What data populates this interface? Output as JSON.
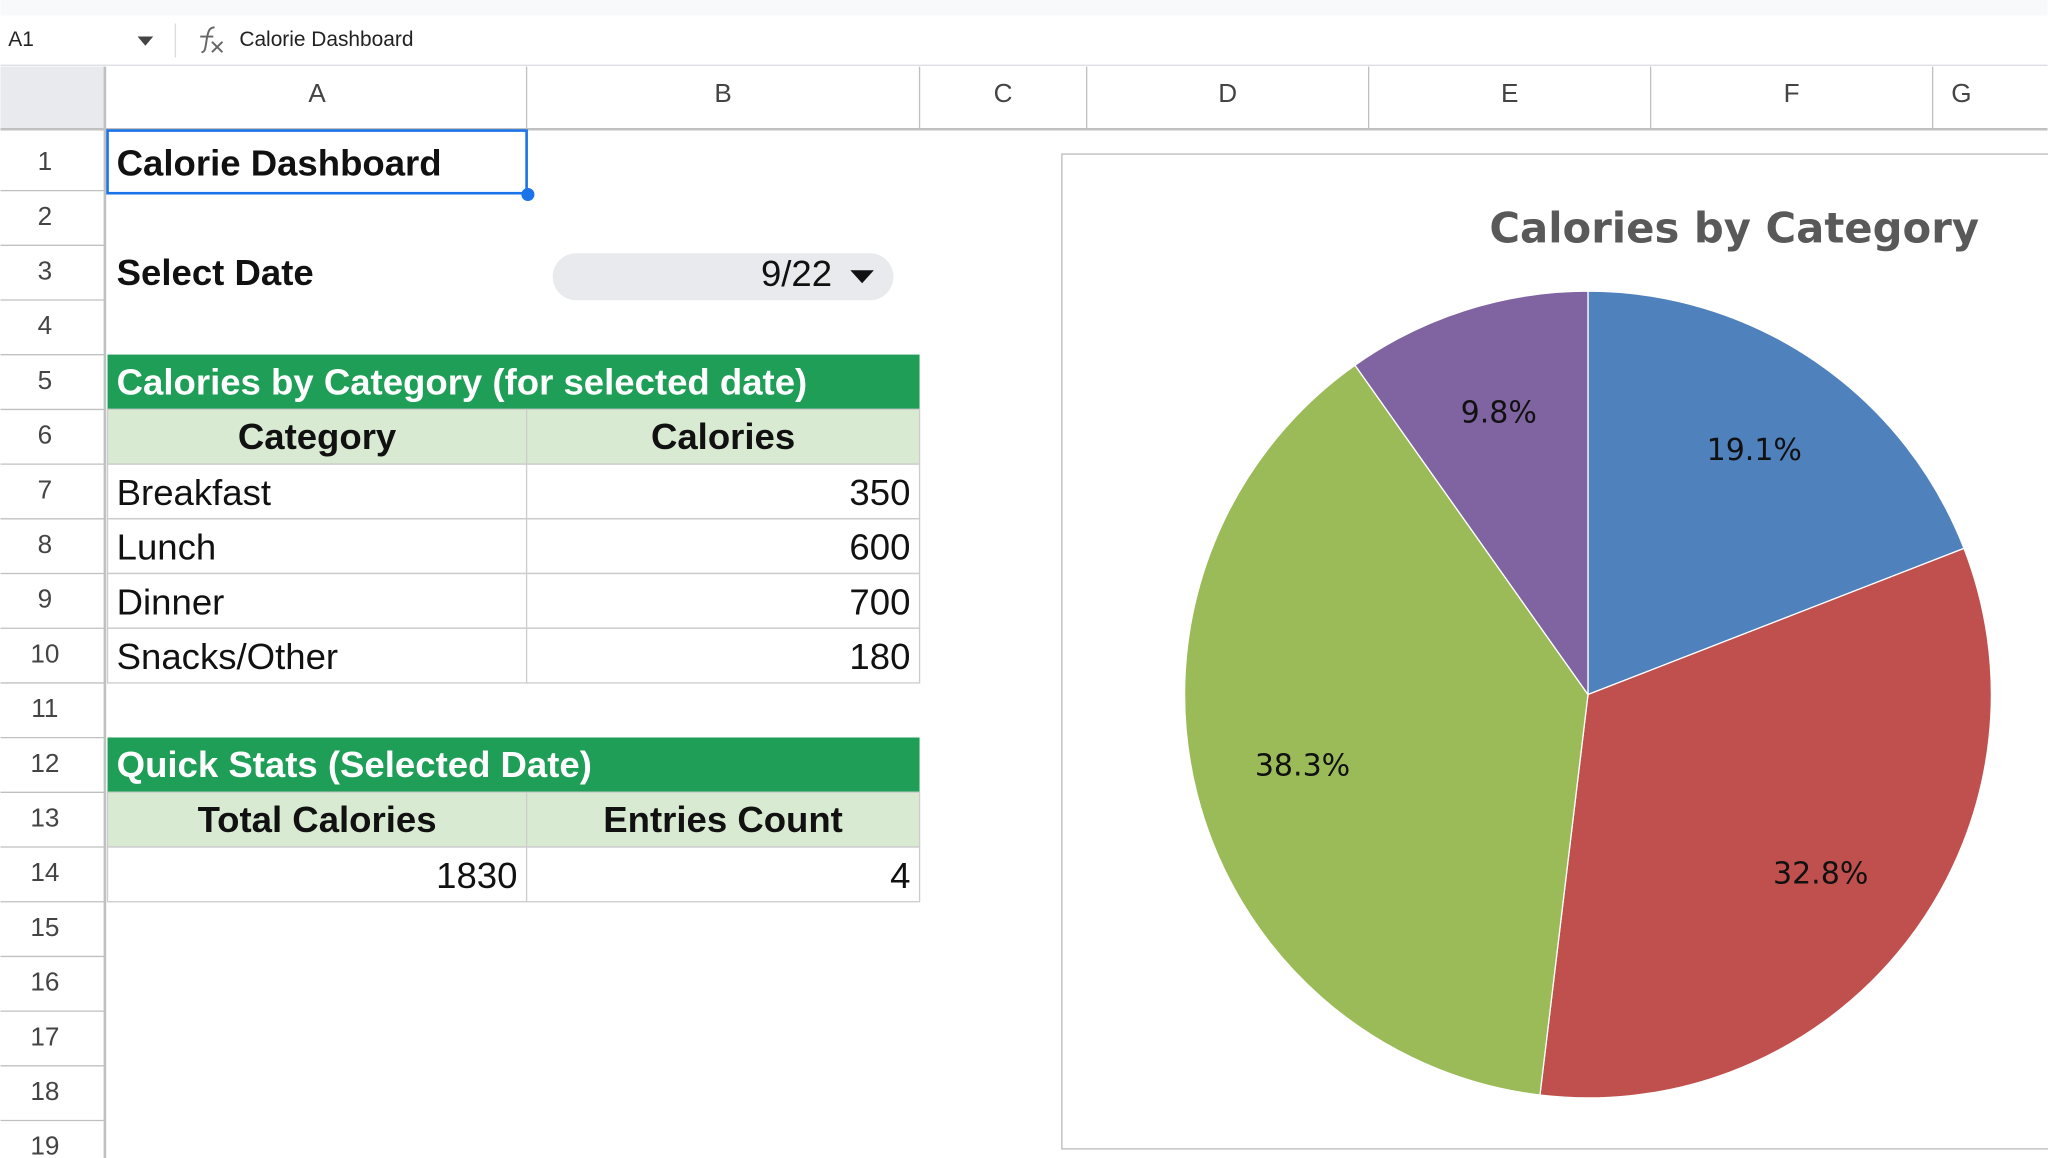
{
  "formula_bar": {
    "cell_ref": "A1",
    "formula": "Calorie Dashboard"
  },
  "column_headers": [
    "A",
    "B",
    "C",
    "D",
    "E",
    "F",
    "G"
  ],
  "row_headers": [
    1,
    2,
    3,
    4,
    5,
    6,
    7,
    8,
    9,
    10,
    11,
    12,
    13,
    14,
    15,
    16,
    17,
    18,
    19
  ],
  "sheet": {
    "title": "Calorie Dashboard",
    "select_date_label": "Select Date",
    "select_date_value": "9/22",
    "category_table": {
      "heading": "Calories by Category (for selected date)",
      "columns": [
        "Category",
        "Calories"
      ],
      "rows": [
        [
          "Breakfast",
          350
        ],
        [
          "Lunch",
          600
        ],
        [
          "Dinner",
          700
        ],
        [
          "Snacks/Other",
          180
        ]
      ]
    },
    "stats_table": {
      "heading": "Quick Stats (Selected Date)",
      "columns": [
        "Total Calories",
        "Entries Count"
      ],
      "rows": [
        [
          1830,
          4
        ]
      ]
    }
  },
  "chart_data": {
    "type": "pie",
    "title": "Calories by Category",
    "values": [
      19.1,
      32.8,
      38.3,
      9.8
    ],
    "value_labels": [
      "19.1%",
      "32.8%",
      "38.3%",
      "9.8%"
    ],
    "colors": [
      "#4f81bd",
      "#c0504d",
      "#9bbb59",
      "#8064a2"
    ]
  }
}
